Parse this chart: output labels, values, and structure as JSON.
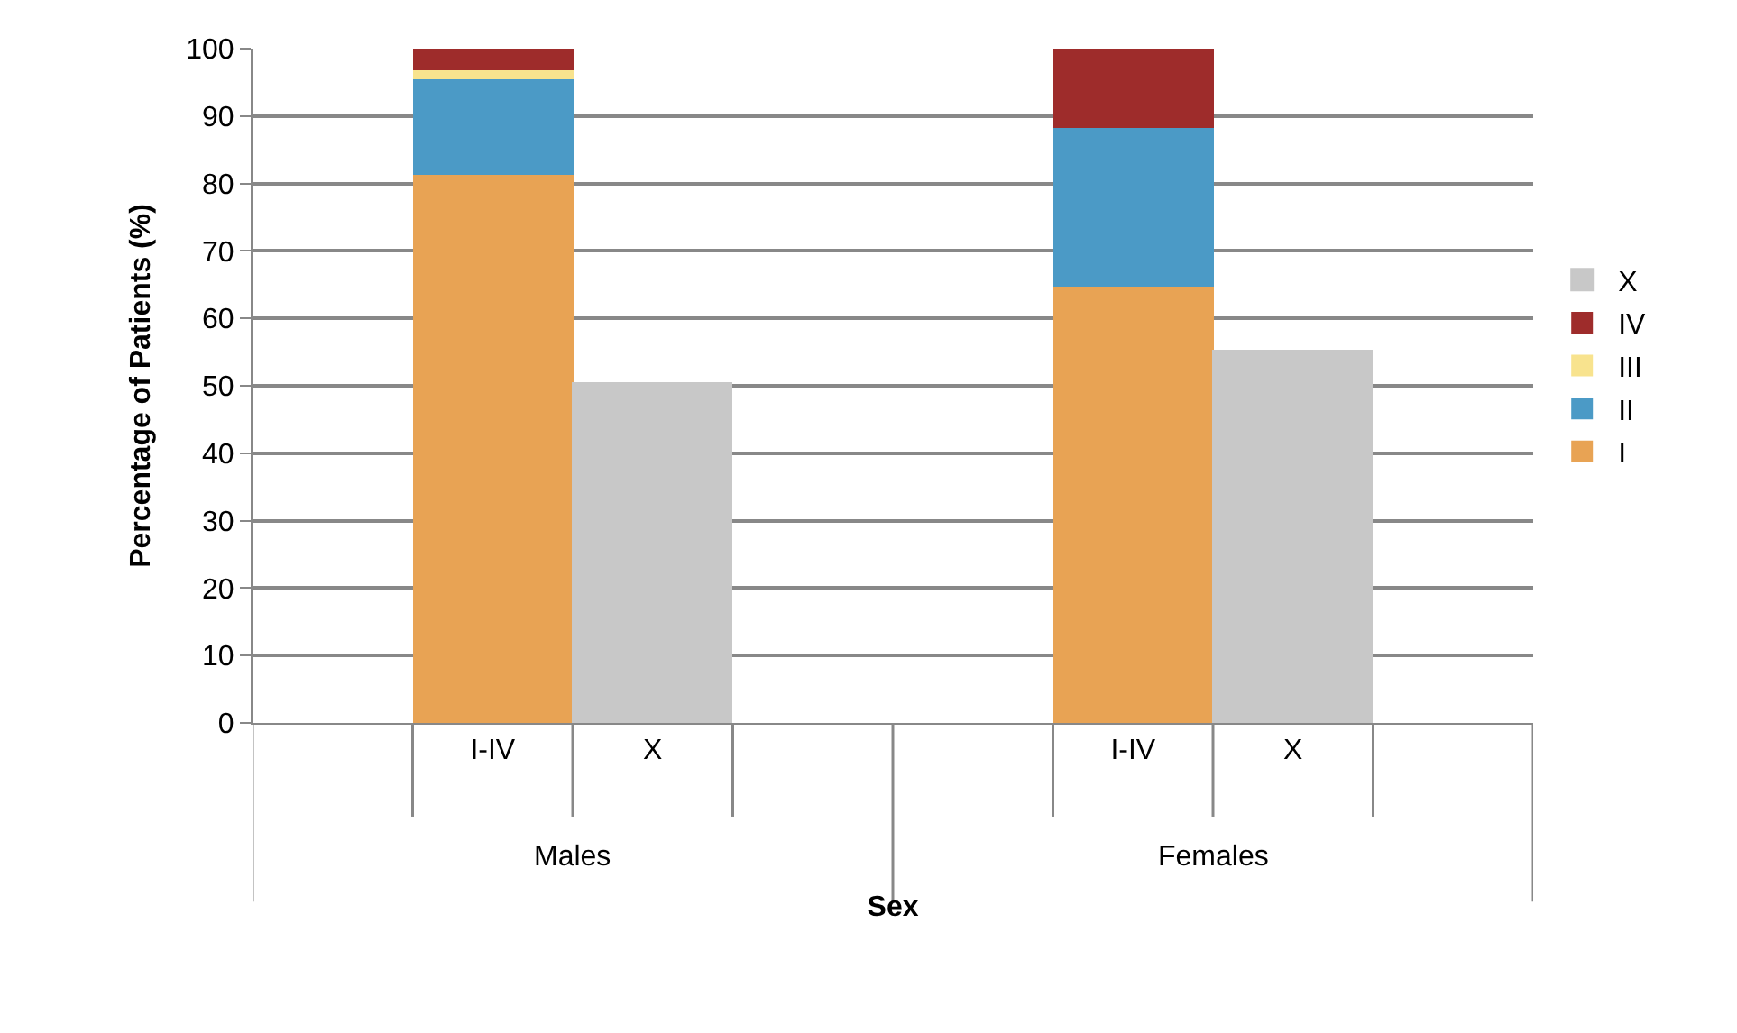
{
  "chart_data": {
    "type": "bar",
    "stacked": true,
    "categories": [
      null,
      "I-IV",
      "X",
      null,
      null,
      "I-IV",
      "X",
      null
    ],
    "series": [
      {
        "name": "I",
        "color": "#e8a354",
        "values": [
          null,
          81.3,
          null,
          null,
          null,
          64.7,
          null,
          null
        ]
      },
      {
        "name": "II",
        "color": "#4b9ac6",
        "values": [
          null,
          14.1,
          null,
          null,
          null,
          23.6,
          null,
          null
        ]
      },
      {
        "name": "III",
        "color": "#f8e38e",
        "values": [
          null,
          1.5,
          null,
          null,
          null,
          null,
          null,
          null
        ]
      },
      {
        "name": "IV",
        "color": "#9e2c2b",
        "values": [
          null,
          3.1,
          null,
          null,
          null,
          11.7,
          null,
          null
        ]
      },
      {
        "name": "X",
        "color": "#c8c8c8",
        "values": [
          null,
          null,
          50.3,
          null,
          null,
          null,
          55.2,
          null
        ]
      }
    ],
    "annotations": [
      "Males",
      "Females"
    ],
    "xlabel": "Sex",
    "ylabel": "Percentage of Patients (%)",
    "ylim": [
      0,
      100
    ],
    "yticks": [
      0,
      10,
      20,
      30,
      40,
      50,
      60,
      70,
      80,
      90,
      100
    ],
    "grid": "y",
    "legend": "right"
  }
}
